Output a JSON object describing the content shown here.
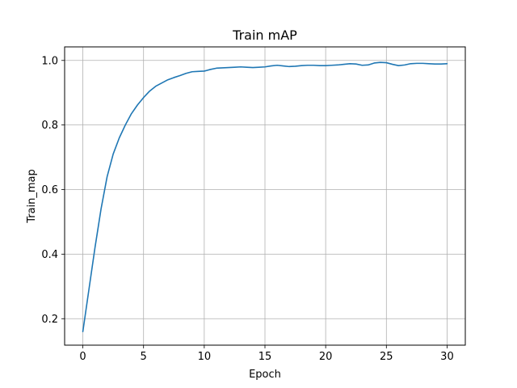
{
  "chart_data": {
    "type": "line",
    "title": "Train mAP",
    "xlabel": "Epoch",
    "ylabel": "Train_map",
    "xlim": [
      -1.5,
      31.5
    ],
    "ylim": [
      0.118,
      1.042
    ],
    "xticks": [
      0,
      5,
      10,
      15,
      20,
      25,
      30
    ],
    "yticks": [
      0.2,
      0.4,
      0.6,
      0.8,
      1.0
    ],
    "ytick_labels": [
      "0.2",
      "0.4",
      "0.6",
      "0.8",
      "1.0"
    ],
    "grid": true,
    "legend": "none",
    "series": [
      {
        "color": "#1f77b4",
        "x": [
          0,
          0.5,
          1,
          1.5,
          2,
          2.5,
          3,
          3.5,
          4,
          4.5,
          5,
          5.5,
          6,
          6.5,
          7,
          7.5,
          8,
          8.5,
          9,
          9.5,
          10,
          10.5,
          11,
          11.5,
          12,
          12.5,
          13,
          13.5,
          14,
          14.5,
          15,
          15.5,
          16,
          16.5,
          17,
          17.5,
          18,
          18.5,
          19,
          19.5,
          20,
          20.5,
          21,
          21.5,
          22,
          22.5,
          23,
          23.5,
          24,
          24.5,
          25,
          25.5,
          26,
          26.5,
          27,
          27.5,
          28,
          28.5,
          29,
          29.5,
          30
        ],
        "y": [
          0.16,
          0.29,
          0.42,
          0.54,
          0.64,
          0.71,
          0.76,
          0.8,
          0.835,
          0.862,
          0.885,
          0.905,
          0.92,
          0.93,
          0.94,
          0.947,
          0.953,
          0.96,
          0.965,
          0.966,
          0.967,
          0.972,
          0.976,
          0.977,
          0.978,
          0.979,
          0.98,
          0.979,
          0.978,
          0.979,
          0.98,
          0.983,
          0.985,
          0.983,
          0.981,
          0.982,
          0.984,
          0.985,
          0.985,
          0.984,
          0.984,
          0.985,
          0.986,
          0.988,
          0.99,
          0.989,
          0.985,
          0.986,
          0.992,
          0.994,
          0.993,
          0.988,
          0.984,
          0.986,
          0.99,
          0.991,
          0.991,
          0.99,
          0.989,
          0.989,
          0.99
        ]
      }
    ]
  }
}
